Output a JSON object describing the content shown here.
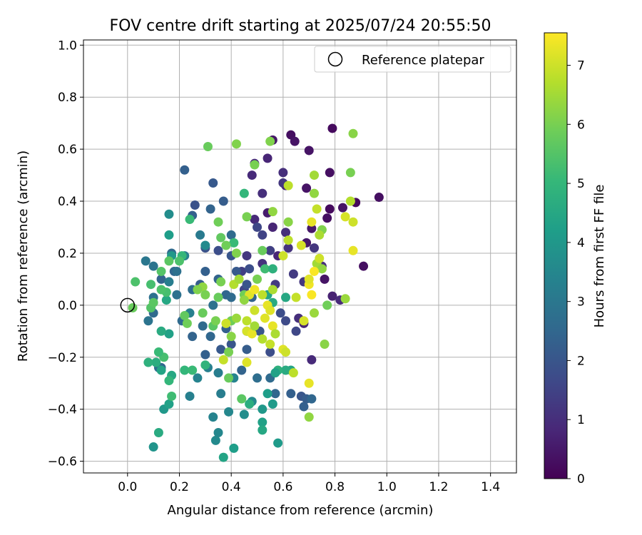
{
  "chart_data": {
    "type": "scatter",
    "title": "FOV centre drift starting at 2025/07/24 20:55:50",
    "xlabel": "Angular distance from reference (arcmin)",
    "ylabel": "Rotation from reference (arcmin)",
    "xlim": [
      -0.17,
      1.5
    ],
    "ylim": [
      -0.645,
      1.02
    ],
    "xticks": [
      "0.0",
      "0.2",
      "0.4",
      "0.6",
      "0.8",
      "1.0",
      "1.2",
      "1.4"
    ],
    "yticks": [
      "−0.6",
      "−0.4",
      "−0.2",
      "0.0",
      "0.2",
      "0.4",
      "0.6",
      "0.8",
      "1.0"
    ],
    "grid": true,
    "legend": {
      "position": "upper-right",
      "entries": [
        {
          "label": "Reference platepar",
          "marker": "hollow-circle"
        }
      ]
    },
    "reference_point": {
      "x": 0.0,
      "y": 0.0
    },
    "colorbar": {
      "label": "Hours from first FF file",
      "range": [
        0,
        7.55
      ],
      "ticks": [
        "0",
        "1",
        "2",
        "3",
        "4",
        "5",
        "6",
        "7"
      ],
      "colormap": "viridis"
    },
    "points": [
      [
        0.79,
        0.68,
        0.2
      ],
      [
        0.63,
        0.655,
        0.3
      ],
      [
        0.645,
        0.63,
        0.4
      ],
      [
        0.56,
        0.635,
        0.5
      ],
      [
        0.7,
        0.595,
        0.4
      ],
      [
        0.54,
        0.565,
        0.8
      ],
      [
        0.49,
        0.545,
        0.9
      ],
      [
        0.6,
        0.51,
        1.0
      ],
      [
        0.48,
        0.5,
        0.9
      ],
      [
        0.69,
        0.45,
        0.4
      ],
      [
        0.61,
        0.46,
        0.8
      ],
      [
        0.52,
        0.43,
        1.0
      ],
      [
        0.6,
        0.47,
        1.2
      ],
      [
        0.78,
        0.51,
        0.3
      ],
      [
        0.88,
        0.395,
        0.2
      ],
      [
        0.97,
        0.415,
        0.3
      ],
      [
        0.78,
        0.37,
        0.2
      ],
      [
        0.83,
        0.375,
        0.4
      ],
      [
        0.77,
        0.335,
        0.3
      ],
      [
        0.54,
        0.355,
        0.6
      ],
      [
        0.49,
        0.33,
        0.9
      ],
      [
        0.71,
        0.295,
        0.5
      ],
      [
        0.69,
        0.24,
        0.5
      ],
      [
        0.61,
        0.28,
        1.0
      ],
      [
        0.56,
        0.3,
        0.8
      ],
      [
        0.62,
        0.22,
        1.1
      ],
      [
        0.55,
        0.21,
        1.4
      ],
      [
        0.58,
        0.19,
        0.8
      ],
      [
        0.72,
        0.22,
        1.2
      ],
      [
        0.75,
        0.15,
        1.0
      ],
      [
        0.91,
        0.15,
        0.3
      ],
      [
        0.76,
        0.1,
        0.4
      ],
      [
        0.79,
        0.035,
        0.7
      ],
      [
        0.82,
        0.02,
        0.9
      ],
      [
        0.68,
        0.09,
        1.2
      ],
      [
        0.64,
        0.12,
        1.3
      ],
      [
        0.52,
        0.27,
        1.5
      ],
      [
        0.5,
        0.3,
        1.6
      ],
      [
        0.46,
        0.19,
        1.2
      ],
      [
        0.44,
        0.13,
        1.4
      ],
      [
        0.45,
        0.06,
        1.6
      ],
      [
        0.52,
        0.16,
        1.1
      ],
      [
        0.57,
        0.08,
        1.3
      ],
      [
        0.66,
        -0.05,
        1.0
      ],
      [
        0.68,
        -0.07,
        0.8
      ],
      [
        0.71,
        -0.21,
        0.9
      ],
      [
        0.22,
        0.52,
        2.3
      ],
      [
        0.33,
        0.47,
        2.1
      ],
      [
        0.37,
        0.4,
        2.2
      ],
      [
        0.26,
        0.385,
        1.9
      ],
      [
        0.25,
        0.345,
        2.3
      ],
      [
        0.32,
        0.37,
        2.4
      ],
      [
        0.4,
        0.27,
        2.6
      ],
      [
        0.3,
        0.22,
        1.9
      ],
      [
        0.35,
        0.21,
        1.8
      ],
      [
        0.4,
        0.19,
        2.0
      ],
      [
        0.42,
        0.13,
        2.1
      ],
      [
        0.3,
        0.13,
        2.3
      ],
      [
        0.35,
        0.1,
        2.4
      ],
      [
        0.28,
        0.08,
        2.2
      ],
      [
        0.38,
        0.04,
        2.5
      ],
      [
        0.46,
        0.08,
        2.0
      ],
      [
        0.47,
        0.14,
        1.8
      ],
      [
        0.48,
        0.03,
        2.4
      ],
      [
        0.4,
        0.03,
        2.6
      ],
      [
        0.33,
        0.0,
        2.8
      ],
      [
        0.29,
        -0.08,
        2.6
      ],
      [
        0.32,
        -0.12,
        2.5
      ],
      [
        0.38,
        -0.09,
        2.3
      ],
      [
        0.4,
        -0.15,
        2.0
      ],
      [
        0.46,
        -0.1,
        2.2
      ],
      [
        0.51,
        -0.1,
        2.0
      ],
      [
        0.55,
        -0.18,
        1.8
      ],
      [
        0.61,
        -0.06,
        1.7
      ],
      [
        0.59,
        -0.03,
        1.8
      ],
      [
        0.65,
        -0.1,
        1.6
      ],
      [
        0.63,
        -0.34,
        2.3
      ],
      [
        0.67,
        -0.35,
        2.0
      ],
      [
        0.69,
        -0.36,
        2.2
      ],
      [
        0.71,
        -0.36,
        2.5
      ],
      [
        0.68,
        -0.39,
        2.3
      ],
      [
        0.57,
        -0.34,
        2.5
      ],
      [
        0.55,
        -0.28,
        2.6
      ],
      [
        0.5,
        -0.28,
        2.7
      ],
      [
        0.44,
        -0.25,
        2.4
      ],
      [
        0.46,
        -0.17,
        2.2
      ],
      [
        0.36,
        -0.17,
        2.1
      ],
      [
        0.3,
        -0.19,
        2.3
      ],
      [
        0.25,
        -0.12,
        2.4
      ],
      [
        0.21,
        -0.06,
        2.6
      ],
      [
        0.19,
        0.04,
        2.8
      ],
      [
        0.18,
        0.13,
        2.5
      ],
      [
        0.17,
        0.2,
        2.6
      ],
      [
        0.19,
        0.13,
        2.8
      ],
      [
        0.25,
        0.06,
        2.7
      ],
      [
        0.13,
        0.1,
        2.4
      ],
      [
        0.1,
        0.03,
        2.8
      ],
      [
        0.1,
        -0.03,
        2.6
      ],
      [
        0.08,
        -0.06,
        2.9
      ],
      [
        0.13,
        -0.24,
        2.5
      ],
      [
        0.12,
        -0.24,
        2.7
      ],
      [
        0.1,
        0.15,
        2.9
      ],
      [
        0.07,
        0.17,
        3.0
      ],
      [
        0.16,
        0.09,
        3.2
      ],
      [
        0.22,
        0.19,
        3.3
      ],
      [
        0.28,
        0.27,
        3.1
      ],
      [
        0.3,
        0.23,
        3.6
      ],
      [
        0.24,
        -0.03,
        3.3
      ],
      [
        0.27,
        -0.28,
        3.4
      ],
      [
        0.31,
        -0.24,
        3.3
      ],
      [
        0.36,
        -0.34,
        3.2
      ],
      [
        0.39,
        -0.41,
        3.5
      ],
      [
        0.33,
        -0.43,
        3.4
      ],
      [
        0.35,
        -0.49,
        3.5
      ],
      [
        0.34,
        -0.52,
        3.6
      ],
      [
        0.24,
        -0.35,
        3.3
      ],
      [
        0.35,
        -0.26,
        3.2
      ],
      [
        0.41,
        -0.28,
        3.4
      ],
      [
        0.48,
        -0.37,
        3.6
      ],
      [
        0.45,
        -0.42,
        3.7
      ],
      [
        0.52,
        -0.4,
        4.0
      ],
      [
        0.54,
        -0.34,
        4.2
      ],
      [
        0.56,
        -0.38,
        4.1
      ],
      [
        0.52,
        -0.45,
        4.3
      ],
      [
        0.58,
        -0.53,
        4.1
      ],
      [
        0.41,
        -0.55,
        4.2
      ],
      [
        0.37,
        -0.585,
        4.4
      ],
      [
        0.1,
        -0.545,
        3.9
      ],
      [
        0.14,
        -0.4,
        4.0
      ],
      [
        0.16,
        -0.38,
        4.3
      ],
      [
        0.12,
        -0.49,
        4.6
      ],
      [
        0.17,
        -0.27,
        4.5
      ],
      [
        0.13,
        -0.25,
        4.4
      ],
      [
        0.11,
        -0.22,
        4.7
      ],
      [
        0.16,
        -0.11,
        4.3
      ],
      [
        0.13,
        -0.1,
        4.6
      ],
      [
        0.08,
        -0.22,
        4.8
      ],
      [
        0.15,
        0.02,
        4.5
      ],
      [
        0.16,
        0.27,
        4.2
      ],
      [
        0.16,
        0.35,
        3.7
      ],
      [
        0.17,
        0.19,
        4.0
      ],
      [
        0.21,
        0.19,
        5.0
      ],
      [
        0.24,
        0.33,
        5.1
      ],
      [
        0.45,
        0.43,
        5.0
      ],
      [
        0.41,
        0.24,
        5.1
      ],
      [
        0.53,
        0.14,
        5.2
      ],
      [
        0.56,
        0.14,
        4.8
      ],
      [
        0.54,
        0.04,
        4.4
      ],
      [
        0.56,
        0.01,
        4.6
      ],
      [
        0.61,
        0.03,
        4.5
      ],
      [
        0.63,
        -0.25,
        4.4
      ],
      [
        0.61,
        -0.25,
        4.6
      ],
      [
        0.58,
        -0.25,
        4.8
      ],
      [
        0.52,
        -0.48,
        4.5
      ],
      [
        0.47,
        -0.38,
        4.7
      ],
      [
        0.57,
        -0.26,
        4.3
      ],
      [
        0.3,
        -0.23,
        4.9
      ],
      [
        0.22,
        -0.25,
        5.0
      ],
      [
        0.25,
        -0.25,
        5.1
      ],
      [
        0.17,
        -0.35,
        5.2
      ],
      [
        0.14,
        -0.2,
        5.3
      ],
      [
        0.12,
        -0.18,
        5.1
      ],
      [
        0.16,
        -0.29,
        5.0
      ],
      [
        0.15,
        0.05,
        5.3
      ],
      [
        0.13,
        0.06,
        5.4
      ],
      [
        0.09,
        -0.01,
        5.5
      ],
      [
        0.1,
        0.01,
        5.6
      ],
      [
        0.02,
        -0.01,
        5.8
      ],
      [
        0.03,
        0.09,
        5.4
      ],
      [
        0.09,
        0.08,
        5.3
      ],
      [
        0.13,
        0.13,
        5.5
      ],
      [
        0.2,
        0.17,
        5.4
      ],
      [
        0.16,
        0.17,
        5.6
      ],
      [
        0.22,
        -0.04,
        5.7
      ],
      [
        0.23,
        -0.07,
        5.9
      ],
      [
        0.33,
        -0.08,
        5.6
      ],
      [
        0.29,
        -0.03,
        5.8
      ],
      [
        0.44,
        -0.36,
        5.6
      ],
      [
        0.39,
        -0.28,
        5.8
      ],
      [
        0.39,
        -0.18,
        6.0
      ],
      [
        0.4,
        -0.06,
        5.9
      ],
      [
        0.35,
        0.03,
        5.8
      ],
      [
        0.36,
        0.09,
        6.0
      ],
      [
        0.45,
        0.04,
        5.9
      ],
      [
        0.5,
        0.1,
        6.0
      ],
      [
        0.52,
        0.21,
        5.8
      ],
      [
        0.42,
        0.2,
        6.1
      ],
      [
        0.38,
        0.23,
        5.9
      ],
      [
        0.36,
        0.26,
        5.7
      ],
      [
        0.35,
        0.32,
        5.9
      ],
      [
        0.31,
        0.61,
        5.8
      ],
      [
        0.42,
        0.62,
        6.1
      ],
      [
        0.49,
        0.54,
        6.0
      ],
      [
        0.55,
        0.63,
        6.1
      ],
      [
        0.87,
        0.66,
        6.2
      ],
      [
        0.86,
        0.51,
        6.0
      ],
      [
        0.46,
        0.34,
        6.0
      ],
      [
        0.56,
        0.36,
        6.3
      ],
      [
        0.62,
        0.32,
        6.2
      ],
      [
        0.72,
        0.5,
        6.5
      ],
      [
        0.72,
        0.43,
        6.3
      ],
      [
        0.75,
        0.29,
        6.1
      ],
      [
        0.77,
        0.0,
        5.9
      ],
      [
        0.76,
        -0.15,
        6.2
      ],
      [
        0.72,
        -0.03,
        6.4
      ],
      [
        0.7,
        -0.43,
        6.3
      ],
      [
        0.62,
        0.25,
        6.8
      ],
      [
        0.73,
        0.37,
        6.9
      ],
      [
        0.74,
        0.27,
        6.6
      ],
      [
        0.73,
        0.16,
        6.5
      ],
      [
        0.75,
        0.14,
        6.3
      ],
      [
        0.84,
        0.025,
        6.4
      ],
      [
        0.86,
        0.4,
        6.7
      ],
      [
        0.84,
        0.34,
        7.1
      ],
      [
        0.87,
        0.21,
        7.3
      ],
      [
        0.87,
        0.32,
        7.0
      ],
      [
        0.71,
        0.32,
        7.3
      ],
      [
        0.67,
        0.23,
        7.1
      ],
      [
        0.6,
        0.19,
        7.0
      ],
      [
        0.62,
        0.46,
        6.8
      ],
      [
        0.7,
        0.08,
        7.4
      ],
      [
        0.72,
        0.13,
        7.5
      ],
      [
        0.74,
        0.18,
        7.0
      ],
      [
        0.7,
        0.1,
        7.2
      ],
      [
        0.71,
        0.04,
        7.5
      ],
      [
        0.65,
        0.03,
        6.9
      ],
      [
        0.56,
        0.06,
        6.6
      ],
      [
        0.52,
        0.04,
        6.8
      ],
      [
        0.54,
        0.0,
        7.3
      ],
      [
        0.55,
        -0.02,
        7.2
      ],
      [
        0.49,
        -0.02,
        7.0
      ],
      [
        0.47,
        0.04,
        7.2
      ],
      [
        0.49,
        0.06,
        7.4
      ],
      [
        0.46,
        -0.06,
        6.8
      ],
      [
        0.46,
        -0.1,
        7.1
      ],
      [
        0.48,
        -0.11,
        7.3
      ],
      [
        0.49,
        -0.08,
        6.5
      ],
      [
        0.52,
        -0.13,
        6.7
      ],
      [
        0.53,
        -0.05,
        7.2
      ],
      [
        0.55,
        -0.15,
        6.9
      ],
      [
        0.56,
        -0.08,
        7.3
      ],
      [
        0.57,
        -0.11,
        6.6
      ],
      [
        0.6,
        -0.17,
        7.2
      ],
      [
        0.61,
        -0.18,
        7.0
      ],
      [
        0.64,
        -0.26,
        6.8
      ],
      [
        0.7,
        -0.3,
        7.3
      ],
      [
        0.68,
        -0.06,
        7.1
      ],
      [
        0.46,
        -0.22,
        7.2
      ],
      [
        0.37,
        -0.21,
        6.9
      ],
      [
        0.38,
        -0.07,
        7.0
      ],
      [
        0.41,
        0.08,
        6.7
      ],
      [
        0.43,
        0.1,
        6.5
      ],
      [
        0.29,
        0.07,
        6.3
      ],
      [
        0.27,
        0.06,
        6.1
      ],
      [
        0.3,
        0.04,
        6.0
      ],
      [
        0.34,
        -0.06,
        6.0
      ],
      [
        0.4,
        -0.12,
        6.2
      ],
      [
        0.42,
        -0.05,
        6.4
      ],
      [
        0.45,
        0.02,
        6.3
      ]
    ]
  }
}
